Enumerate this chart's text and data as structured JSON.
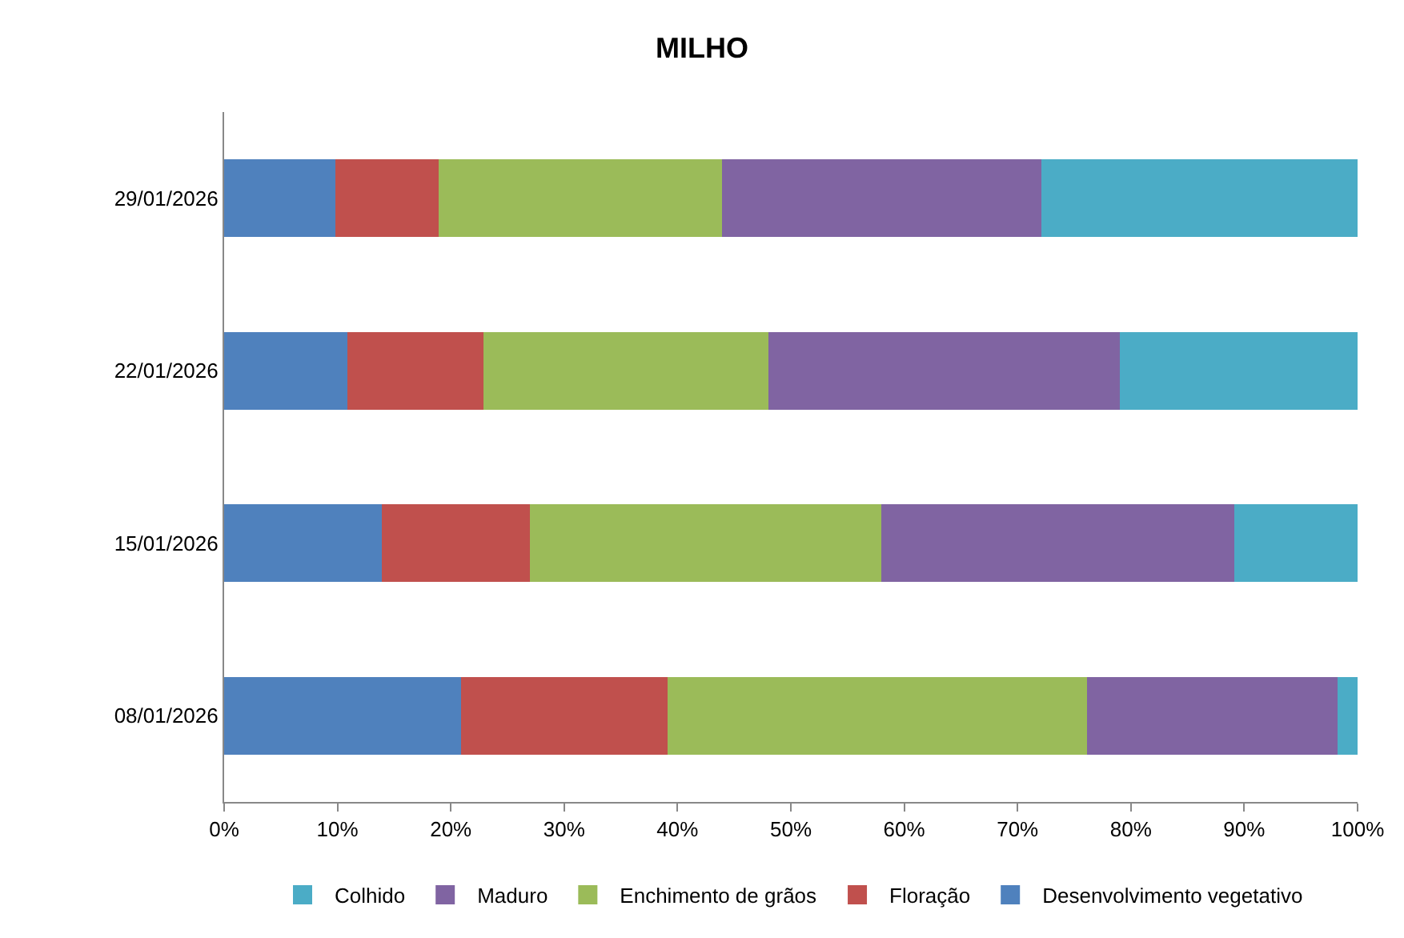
{
  "chart_data": {
    "type": "bar",
    "title": "MILHO",
    "orientation": "horizontal",
    "stacked": true,
    "categories": [
      "29/01/2026",
      "22/01/2026",
      "15/01/2026",
      "08/01/2026"
    ],
    "series": [
      {
        "name": "Desenvolvimento vegetativo",
        "color": "#4f81bd",
        "values": [
          9.8,
          10.9,
          13.9,
          20.9
        ]
      },
      {
        "name": "Floração",
        "color": "#c0504d",
        "values": [
          9.1,
          12.0,
          13.1,
          18.2
        ]
      },
      {
        "name": "Enchimento de grãos",
        "color": "#9bbb59",
        "values": [
          25.0,
          25.1,
          31.0,
          37.0
        ]
      },
      {
        "name": "Maduro",
        "color": "#8064a2",
        "values": [
          28.2,
          31.0,
          31.1,
          22.1
        ]
      },
      {
        "name": "Colhido",
        "color": "#4bacc6",
        "values": [
          27.9,
          21.0,
          10.9,
          1.8
        ]
      }
    ],
    "xlim": [
      0,
      100
    ],
    "xticks": [
      {
        "value": 0,
        "label": "0%"
      },
      {
        "value": 10,
        "label": "10%"
      },
      {
        "value": 20,
        "label": "20%"
      },
      {
        "value": 30,
        "label": "30%"
      },
      {
        "value": 40,
        "label": "40%"
      },
      {
        "value": 50,
        "label": "50%"
      },
      {
        "value": 60,
        "label": "60%"
      },
      {
        "value": 70,
        "label": "70%"
      },
      {
        "value": 80,
        "label": "80%"
      },
      {
        "value": 90,
        "label": "90%"
      },
      {
        "value": 100,
        "label": "100%"
      }
    ],
    "legend": "bottom",
    "grid": false
  }
}
